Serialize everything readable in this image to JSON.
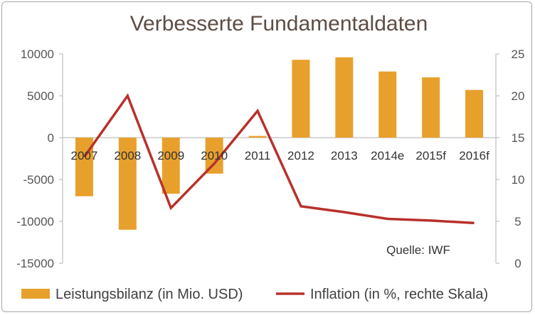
{
  "chart_data": {
    "type": "bar",
    "title": "Verbesserte Fundamentaldaten",
    "categories": [
      "2007",
      "2008",
      "2009",
      "2010",
      "2011",
      "2012",
      "2013",
      "2014e",
      "2015f",
      "2016f"
    ],
    "series": [
      {
        "name": "Leistungsbilanz (in Mio. USD)",
        "type": "bar",
        "axis": "left",
        "color": "#e8a02c",
        "values": [
          -7000,
          -11000,
          -6700,
          -4300,
          200,
          9300,
          9600,
          7900,
          7200,
          5700
        ]
      },
      {
        "name": "Inflation (in %, rechte Skala)",
        "type": "line",
        "axis": "right",
        "color": "#b8312b",
        "values": [
          12.7,
          20.0,
          6.6,
          11.9,
          18.2,
          6.8,
          6.1,
          5.3,
          5.1,
          4.8
        ]
      }
    ],
    "ylim_left": [
      -15000,
      10000
    ],
    "yticks_left": [
      "10000",
      "5000",
      "0",
      "-5000",
      "-10000",
      "-15000"
    ],
    "ylim_right": [
      0,
      25
    ],
    "yticks_right": [
      "25",
      "20",
      "15",
      "10",
      "5",
      "0"
    ],
    "grid": false,
    "legend_position": "bottom",
    "annotation": "Quelle: IWF"
  }
}
